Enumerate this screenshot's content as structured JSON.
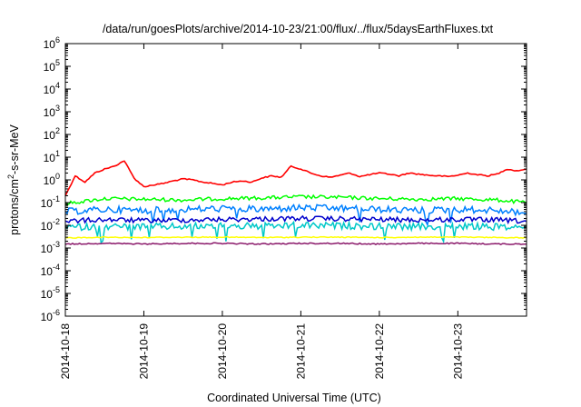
{
  "chart_data": {
    "type": "line",
    "title": "/data/run/goesPlots/archive/2014-10-23/21:00/flux/../flux/5daysEarthFluxes.txt",
    "xlabel": "Coordinated Universal Time (UTC)",
    "ylabel_base": "protons/cm",
    "ylabel_sup": "2",
    "ylabel_tail": "-s-sr-MeV",
    "y_scale": "log",
    "ylim": [
      1e-06,
      1000000.0
    ],
    "xlim": [
      "2014-10-18",
      "2014-10-23T21:00"
    ],
    "y_ticks": [
      {
        "value": 1e-06,
        "base": "10",
        "exp": "-6"
      },
      {
        "value": 1e-05,
        "base": "10",
        "exp": "-5"
      },
      {
        "value": 0.0001,
        "base": "10",
        "exp": "-4"
      },
      {
        "value": 0.001,
        "base": "10",
        "exp": "-3"
      },
      {
        "value": 0.01,
        "base": "10",
        "exp": "-2"
      },
      {
        "value": 0.1,
        "base": "10",
        "exp": "-1"
      },
      {
        "value": 1,
        "base": "10",
        "exp": "0"
      },
      {
        "value": 10,
        "base": "10",
        "exp": "1"
      },
      {
        "value": 100,
        "base": "10",
        "exp": "2"
      },
      {
        "value": 1000,
        "base": "10",
        "exp": "3"
      },
      {
        "value": 10000,
        "base": "10",
        "exp": "4"
      },
      {
        "value": 100000,
        "base": "10",
        "exp": "5"
      },
      {
        "value": 1000000,
        "base": "10",
        "exp": "6"
      }
    ],
    "x_ticks": [
      "2014-10-18",
      "2014-10-19",
      "2014-10-20",
      "2014-10-21",
      "2014-10-22",
      "2014-10-23"
    ],
    "grid": false,
    "legend": "none",
    "series": [
      {
        "color": "#ff0000",
        "x": [
          "2014-10-18T00:00",
          "2014-10-18T03:00",
          "2014-10-18T06:00",
          "2014-10-18T09:00",
          "2014-10-18T12:00",
          "2014-10-18T15:00",
          "2014-10-18T18:00",
          "2014-10-18T21:00",
          "2014-10-19T00:00",
          "2014-10-19T03:00",
          "2014-10-19T06:00",
          "2014-10-19T09:00",
          "2014-10-19T12:00",
          "2014-10-19T15:00",
          "2014-10-19T18:00",
          "2014-10-19T21:00",
          "2014-10-20T00:00",
          "2014-10-20T03:00",
          "2014-10-20T06:00",
          "2014-10-20T09:00",
          "2014-10-20T12:00",
          "2014-10-20T15:00",
          "2014-10-20T18:00",
          "2014-10-20T21:00",
          "2014-10-21T00:00",
          "2014-10-21T03:00",
          "2014-10-21T06:00",
          "2014-10-21T09:00",
          "2014-10-21T12:00",
          "2014-10-21T15:00",
          "2014-10-21T18:00",
          "2014-10-21T21:00",
          "2014-10-22T00:00",
          "2014-10-22T03:00",
          "2014-10-22T06:00",
          "2014-10-22T09:00",
          "2014-10-22T12:00",
          "2014-10-22T15:00",
          "2014-10-22T18:00",
          "2014-10-22T21:00",
          "2014-10-23T00:00",
          "2014-10-23T03:00",
          "2014-10-23T06:00",
          "2014-10-23T09:00",
          "2014-10-23T12:00",
          "2014-10-23T15:00",
          "2014-10-23T18:00",
          "2014-10-23T21:00"
        ],
        "values": [
          0.2,
          1.5,
          0.8,
          2.0,
          3.0,
          4.0,
          7.0,
          1.2,
          0.5,
          0.6,
          0.7,
          0.9,
          1.1,
          1.0,
          0.8,
          0.7,
          0.6,
          0.8,
          0.9,
          0.8,
          1.2,
          1.5,
          1.3,
          4.0,
          3.0,
          2.0,
          1.5,
          1.3,
          1.6,
          2.0,
          1.4,
          1.7,
          2.0,
          1.8,
          1.5,
          2.0,
          1.8,
          1.6,
          1.5,
          1.4,
          1.6,
          2.0,
          1.7,
          1.5,
          1.8,
          3.0,
          2.5,
          3.0
        ]
      },
      {
        "color": "#00ff00",
        "x": [
          "2014-10-18T00:00",
          "2014-10-18T12:00",
          "2014-10-19T00:00",
          "2014-10-19T12:00",
          "2014-10-20T00:00",
          "2014-10-20T12:00",
          "2014-10-21T00:00",
          "2014-10-21T12:00",
          "2014-10-22T00:00",
          "2014-10-22T12:00",
          "2014-10-23T00:00",
          "2014-10-23T12:00",
          "2014-10-23T21:00"
        ],
        "values": [
          0.09,
          0.15,
          0.14,
          0.13,
          0.15,
          0.16,
          0.18,
          0.17,
          0.15,
          0.14,
          0.15,
          0.13,
          0.1
        ]
      },
      {
        "color": "#0080ff",
        "x": [
          "2014-10-18T00:00",
          "2014-10-18T12:00",
          "2014-10-19T00:00",
          "2014-10-19T12:00",
          "2014-10-20T00:00",
          "2014-10-20T12:00",
          "2014-10-21T00:00",
          "2014-10-21T12:00",
          "2014-10-22T00:00",
          "2014-10-22T12:00",
          "2014-10-23T00:00",
          "2014-10-23T12:00",
          "2014-10-23T21:00"
        ],
        "values": [
          0.04,
          0.05,
          0.045,
          0.05,
          0.055,
          0.05,
          0.06,
          0.055,
          0.05,
          0.045,
          0.05,
          0.045,
          0.035
        ]
      },
      {
        "color": "#0000cc",
        "x": [
          "2014-10-18T00:00",
          "2014-10-18T12:00",
          "2014-10-19T00:00",
          "2014-10-19T12:00",
          "2014-10-20T00:00",
          "2014-10-20T12:00",
          "2014-10-21T00:00",
          "2014-10-21T12:00",
          "2014-10-22T00:00",
          "2014-10-22T12:00",
          "2014-10-23T00:00",
          "2014-10-23T12:00",
          "2014-10-23T21:00"
        ],
        "values": [
          0.015,
          0.018,
          0.016,
          0.017,
          0.018,
          0.019,
          0.02,
          0.019,
          0.018,
          0.017,
          0.018,
          0.017,
          0.015
        ]
      },
      {
        "color": "#00c8c8",
        "x": [
          "2014-10-18T00:00",
          "2014-10-18T12:00",
          "2014-10-19T00:00",
          "2014-10-19T12:00",
          "2014-10-20T00:00",
          "2014-10-20T12:00",
          "2014-10-21T00:00",
          "2014-10-21T12:00",
          "2014-10-22T00:00",
          "2014-10-22T12:00",
          "2014-10-23T00:00",
          "2014-10-23T12:00",
          "2014-10-23T21:00"
        ],
        "values": [
          0.008,
          0.009,
          0.0085,
          0.009,
          0.0095,
          0.009,
          0.01,
          0.0095,
          0.009,
          0.0085,
          0.009,
          0.0085,
          0.008
        ]
      },
      {
        "color": "#ffff00",
        "x": [
          "2014-10-18T00:00",
          "2014-10-18T12:00",
          "2014-10-19T00:00",
          "2014-10-19T12:00",
          "2014-10-20T00:00",
          "2014-10-20T12:00",
          "2014-10-21T00:00",
          "2014-10-21T12:00",
          "2014-10-22T00:00",
          "2014-10-22T12:00",
          "2014-10-23T00:00",
          "2014-10-23T12:00",
          "2014-10-23T21:00"
        ],
        "values": [
          0.0028,
          0.003,
          0.0029,
          0.003,
          0.003,
          0.0029,
          0.003,
          0.003,
          0.0029,
          0.003,
          0.003,
          0.0029,
          0.0028
        ]
      },
      {
        "color": "#8b1a6b",
        "x": [
          "2014-10-18T00:00",
          "2014-10-18T12:00",
          "2014-10-19T00:00",
          "2014-10-19T12:00",
          "2014-10-20T00:00",
          "2014-10-20T12:00",
          "2014-10-21T00:00",
          "2014-10-21T12:00",
          "2014-10-22T00:00",
          "2014-10-22T12:00",
          "2014-10-23T00:00",
          "2014-10-23T12:00",
          "2014-10-23T21:00"
        ],
        "values": [
          0.0015,
          0.0016,
          0.0015,
          0.0016,
          0.0016,
          0.0015,
          0.0016,
          0.0016,
          0.0015,
          0.0016,
          0.0016,
          0.0015,
          0.0015
        ]
      }
    ]
  }
}
